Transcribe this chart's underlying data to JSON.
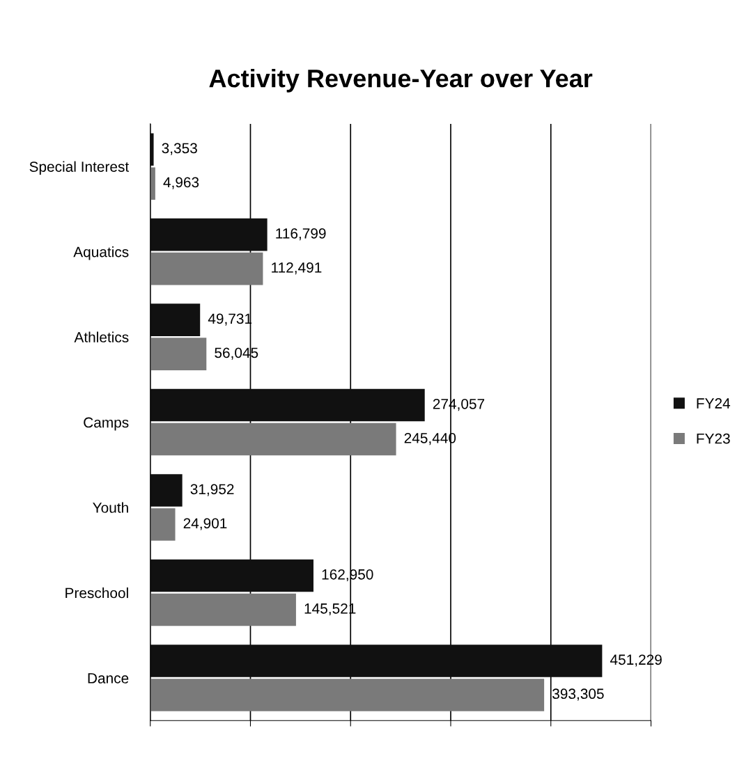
{
  "chart_data": {
    "type": "bar",
    "orientation": "horizontal",
    "title": "Activity Revenue-Year over Year",
    "categories": [
      "Special Interest",
      "Aquatics",
      "Athletics",
      "Camps",
      "Youth",
      "Preschool",
      "Dance"
    ],
    "series": [
      {
        "name": "FY24",
        "color": "#111111",
        "values": [
          3353,
          116799,
          49731,
          274057,
          31952,
          162950,
          451229
        ],
        "value_labels": [
          "3,353",
          "116,799",
          "49,731",
          "274,057",
          "31,952",
          "162,950",
          "451,229"
        ]
      },
      {
        "name": "FY23",
        "color": "#7a7a7a",
        "values": [
          4963,
          112491,
          56045,
          245440,
          24901,
          145521,
          393305
        ],
        "value_labels": [
          "4,963",
          "112,491",
          "56,045",
          "245,440",
          "24,901",
          "145,521",
          "393,305"
        ]
      }
    ],
    "xlim": [
      0,
      500000
    ],
    "xticks": [
      {
        "value": 0,
        "label": null
      },
      {
        "value": 100000,
        "label": null
      },
      {
        "value": 200000,
        "label": null
      },
      {
        "value": 300000,
        "label": null
      },
      {
        "value": 400000,
        "label": null
      },
      {
        "value": 500000,
        "label": null
      }
    ],
    "grid": "x",
    "legend": "right"
  }
}
